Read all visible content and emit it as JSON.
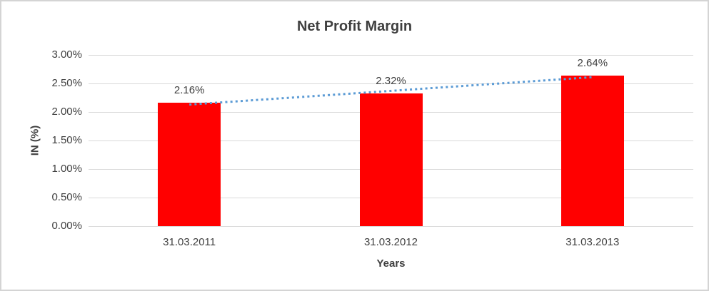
{
  "chart_data": {
    "type": "bar",
    "title": "Net Profit Margin",
    "xlabel": "Years",
    "ylabel": "IN (%)",
    "categories": [
      "31.03.2011",
      "31.03.2012",
      "31.03.2013"
    ],
    "values": [
      2.16,
      2.32,
      2.64
    ],
    "data_labels": [
      "2.16%",
      "2.32%",
      "2.64%"
    ],
    "y_ticks": [
      "3.00%",
      "2.50%",
      "2.00%",
      "1.50%",
      "1.00%",
      "0.50%",
      "0.00%"
    ],
    "ylim": [
      0,
      3
    ],
    "grid": true,
    "legend": "none",
    "trendline": {
      "type": "linear",
      "style": "dotted",
      "start_value": 2.13,
      "end_value": 2.61
    },
    "colors": {
      "bar": "#ff0000",
      "trendline": "#5b9bd5",
      "gridline": "#d9d9d9",
      "text": "#404040",
      "frame_border": "#d4d4d4",
      "background": "#ffffff"
    }
  }
}
